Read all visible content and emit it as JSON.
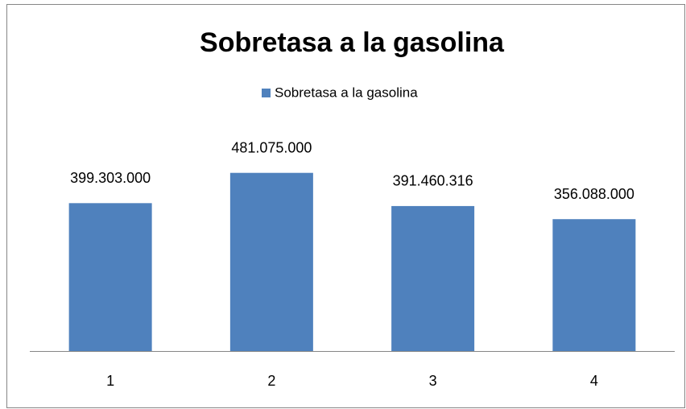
{
  "chart_data": {
    "type": "bar",
    "title": "Sobretasa a la gasolina",
    "categories": [
      "1",
      "2",
      "3",
      "4"
    ],
    "series": [
      {
        "name": "Sobretasa a la gasolina",
        "color": "#4f81bd",
        "values": [
          399303000,
          481075000,
          391460316,
          356088000
        ],
        "value_labels": [
          "399.303.000",
          "481.075.000",
          "391.460.316",
          "356.088.000"
        ]
      }
    ],
    "ylim": [
      0,
      600000000
    ],
    "legend": "top"
  }
}
